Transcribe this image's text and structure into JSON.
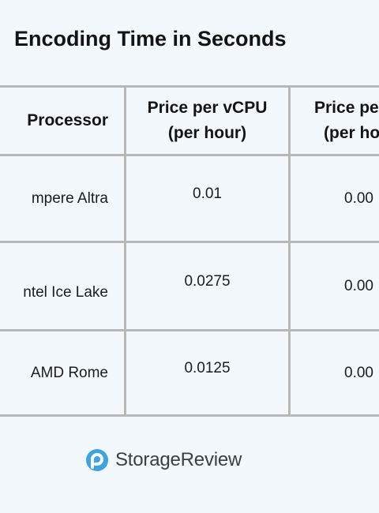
{
  "title": "Encoding Time in Seconds",
  "chart_data": {
    "type": "table",
    "columns": [
      "Processor",
      "Price per vCPU\n(per hour)",
      "Price pe\n(per ho"
    ],
    "rows": [
      {
        "processor": "mpere Altra",
        "price_per_vcpu": "0.01",
        "col3": "0.00"
      },
      {
        "processor": "ntel Ice Lake",
        "price_per_vcpu": "0.0275",
        "col3": "0.00"
      },
      {
        "processor": "AMD Rome",
        "price_per_vcpu": "0.0125",
        "col3": "0.00"
      }
    ]
  },
  "header": {
    "processor": "Processor",
    "price_vcpu_line1": "Price per vCPU",
    "price_vcpu_line2": "(per hour)",
    "price_other_line1": "Price pe",
    "price_other_line2": "(per ho"
  },
  "logo": {
    "text": "StorageReview",
    "icon": "storagereview-logo-icon",
    "color": "#3ea3e2"
  }
}
